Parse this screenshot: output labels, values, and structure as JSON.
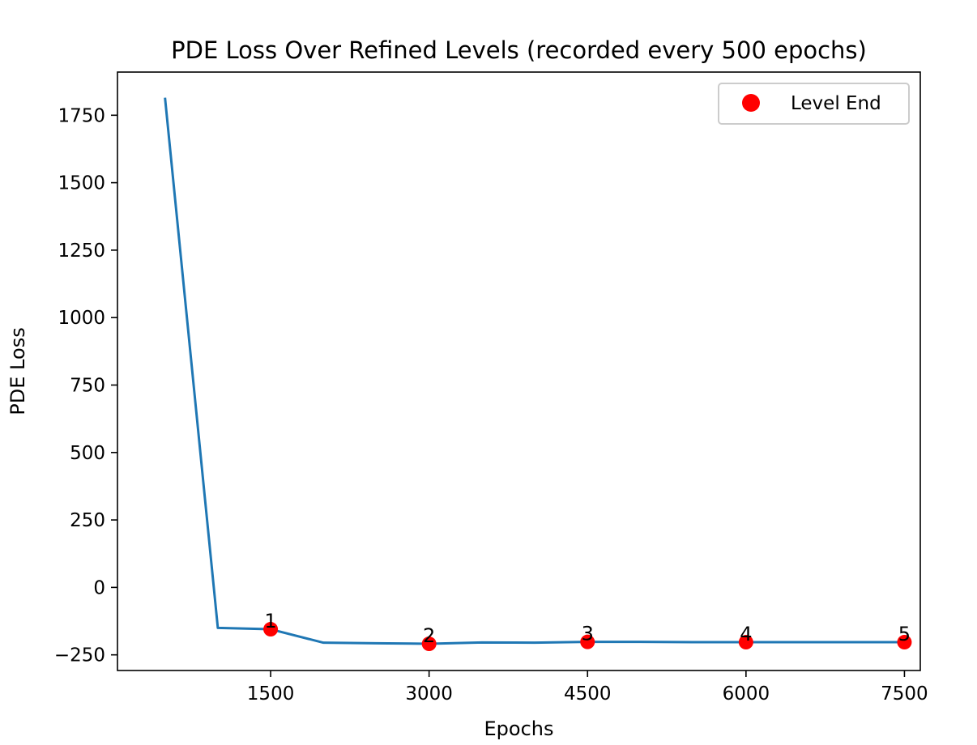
{
  "chart_data": {
    "type": "line",
    "title": "PDE Loss Over Refined Levels (recorded every 500 epochs)",
    "xlabel": "Epochs",
    "ylabel": "PDE Loss",
    "xlim": [
      50,
      7650
    ],
    "ylim": [
      -308,
      1910
    ],
    "x_ticks": [
      1500,
      3000,
      4500,
      6000,
      7500
    ],
    "y_ticks": [
      -250,
      0,
      250,
      500,
      750,
      1000,
      1250,
      1500,
      1750
    ],
    "grid": false,
    "legend_position": "top-right",
    "colors": {
      "line": "#1f77b4",
      "marker": "#ff0000"
    },
    "series": [
      {
        "x": [
          500,
          1000,
          1500,
          2000,
          2500,
          3000,
          3500,
          4000,
          4500,
          5000,
          5500,
          6000,
          6500,
          7000,
          7500
        ],
        "y": [
          1815,
          -150,
          -155,
          -205,
          -207,
          -209,
          -204,
          -205,
          -202,
          -202,
          -203,
          -203,
          -203,
          -203,
          -203
        ]
      },
      {
        "name": "Level End",
        "x": [
          1500,
          3000,
          4500,
          6000,
          7500
        ],
        "y": [
          -155,
          -209,
          -202,
          -203,
          -203
        ],
        "annotations": [
          "1",
          "2",
          "3",
          "4",
          "5"
        ]
      }
    ]
  }
}
